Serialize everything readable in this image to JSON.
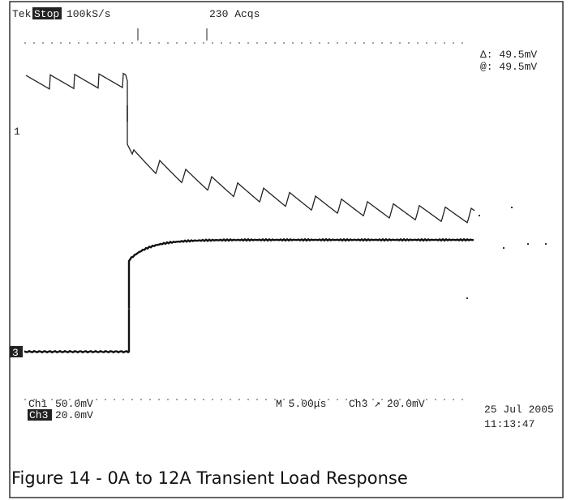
{
  "header": {
    "brand": "Tek",
    "state": "Stop",
    "rate": "100kS/s",
    "acquisitions": "230 Acqs"
  },
  "cursor": {
    "delta": "Δ: 49.5mV",
    "at": "@: 49.5mV"
  },
  "channel_markers": [
    "1",
    "3"
  ],
  "footer": {
    "ch1": "Ch1",
    "ch1_scale": "50.0mV",
    "ch3": "Ch3",
    "ch3_scale": "20.0mV",
    "timebase": "M 5.00μs",
    "trigger": "Ch3 ↗  20.0mV",
    "date": "25 Jul 2005",
    "time": "11:13:47"
  },
  "caption": "Figure 14 - 0A to 12A Transient Load Response"
}
